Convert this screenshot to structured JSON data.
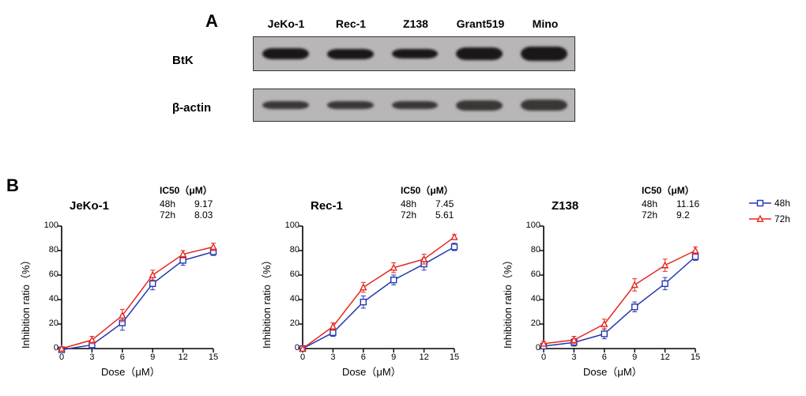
{
  "panelA": {
    "label": "A",
    "lanes": [
      "JeKo-1",
      "Rec-1",
      "Z138",
      "Grant519",
      "Mino"
    ],
    "rows": [
      {
        "label": "BtK",
        "band_heights": [
          14,
          13,
          12,
          16,
          18
        ],
        "band_tones": [
          "dark",
          "dark",
          "dark",
          "dark",
          "dark"
        ]
      },
      {
        "label": "β-actin",
        "band_heights": [
          10,
          10,
          10,
          13,
          14
        ],
        "band_tones": [
          "light",
          "light",
          "light",
          "light",
          "light"
        ]
      }
    ],
    "background_color": "#b8b6b6",
    "band_dark": "#1a1718",
    "band_light": "#4a4444"
  },
  "panelB": {
    "label": "B",
    "charts": [
      {
        "title": "JeKo-1",
        "ic50_header": "IC50（μM）",
        "ic50": [
          {
            "t": "48h",
            "v": "9.17"
          },
          {
            "t": "72h",
            "v": "8.03"
          }
        ],
        "xlabel": "Dose（μM）",
        "ylabel": "Inhibition   ratio（%）",
        "xlim": [
          0,
          15
        ],
        "ylim": [
          0,
          100
        ],
        "xticks": [
          0,
          3,
          6,
          9,
          12,
          15
        ],
        "yticks": [
          0,
          20,
          40,
          60,
          80,
          100
        ],
        "series": [
          {
            "name": "48h",
            "color": "#2338b0",
            "marker": "square-open",
            "x": [
              0,
              3,
              6,
              9,
              12,
              15
            ],
            "y": [
              -1,
              3,
              21,
              53,
              72,
              79
            ],
            "err": [
              0,
              3,
              6,
              5,
              4,
              3
            ]
          },
          {
            "name": "72h",
            "color": "#e5261d",
            "marker": "triangle-open",
            "x": [
              0,
              3,
              6,
              9,
              12,
              15
            ],
            "y": [
              0,
              7,
              27,
              60,
              77,
              83
            ],
            "err": [
              0,
              3,
              5,
              4,
              3,
              3
            ]
          }
        ]
      },
      {
        "title": "Rec-1",
        "ic50_header": "IC50（μM）",
        "ic50": [
          {
            "t": "48h",
            "v": "7.45"
          },
          {
            "t": "72h",
            "v": "5.61"
          }
        ],
        "xlabel": "Dose（μM）",
        "ylabel": "Inhibition   ratio（%）",
        "xlim": [
          0,
          15
        ],
        "ylim": [
          0,
          100
        ],
        "xticks": [
          0,
          3,
          6,
          9,
          12,
          15
        ],
        "yticks": [
          0,
          20,
          40,
          60,
          80,
          100
        ],
        "series": [
          {
            "name": "48h",
            "color": "#2338b0",
            "marker": "square-open",
            "x": [
              0,
              3,
              6,
              9,
              12,
              15
            ],
            "y": [
              0,
              13,
              38,
              56,
              69,
              83
            ],
            "err": [
              0,
              3,
              5,
              4,
              5,
              3
            ]
          },
          {
            "name": "72h",
            "color": "#e5261d",
            "marker": "triangle-open",
            "x": [
              0,
              3,
              6,
              9,
              12,
              15
            ],
            "y": [
              0,
              18,
              50,
              66,
              73,
              91
            ],
            "err": [
              0,
              3,
              4,
              4,
              4,
              2
            ]
          }
        ]
      },
      {
        "title": "Z138",
        "ic50_header": "IC50（μM）",
        "ic50": [
          {
            "t": "48h",
            "v": "11.16"
          },
          {
            "t": "72h",
            "v": "9.2"
          }
        ],
        "xlabel": "Dose（μM）",
        "ylabel": "Inhibition   ratio（%）",
        "xlim": [
          0,
          15
        ],
        "ylim": [
          0,
          100
        ],
        "xticks": [
          0,
          3,
          6,
          9,
          12,
          15
        ],
        "yticks": [
          0,
          20,
          40,
          60,
          80,
          100
        ],
        "series": [
          {
            "name": "48h",
            "color": "#2338b0",
            "marker": "square-open",
            "x": [
              0,
              3,
              6,
              9,
              12,
              15
            ],
            "y": [
              2,
              5,
              12,
              34,
              53,
              75
            ],
            "err": [
              2,
              3,
              4,
              4,
              5,
              3
            ]
          },
          {
            "name": "72h",
            "color": "#e5261d",
            "marker": "triangle-open",
            "x": [
              0,
              3,
              6,
              9,
              12,
              15
            ],
            "y": [
              4,
              7,
              20,
              52,
              68,
              80
            ],
            "err": [
              2,
              3,
              4,
              5,
              5,
              3
            ]
          }
        ]
      }
    ],
    "legend": [
      {
        "label": "48h",
        "color": "#2338b0",
        "marker": "square-open"
      },
      {
        "label": "72h",
        "color": "#e5261d",
        "marker": "triangle-open"
      }
    ],
    "axis_color": "#000000",
    "line_width": 1.5,
    "marker_size": 7
  }
}
